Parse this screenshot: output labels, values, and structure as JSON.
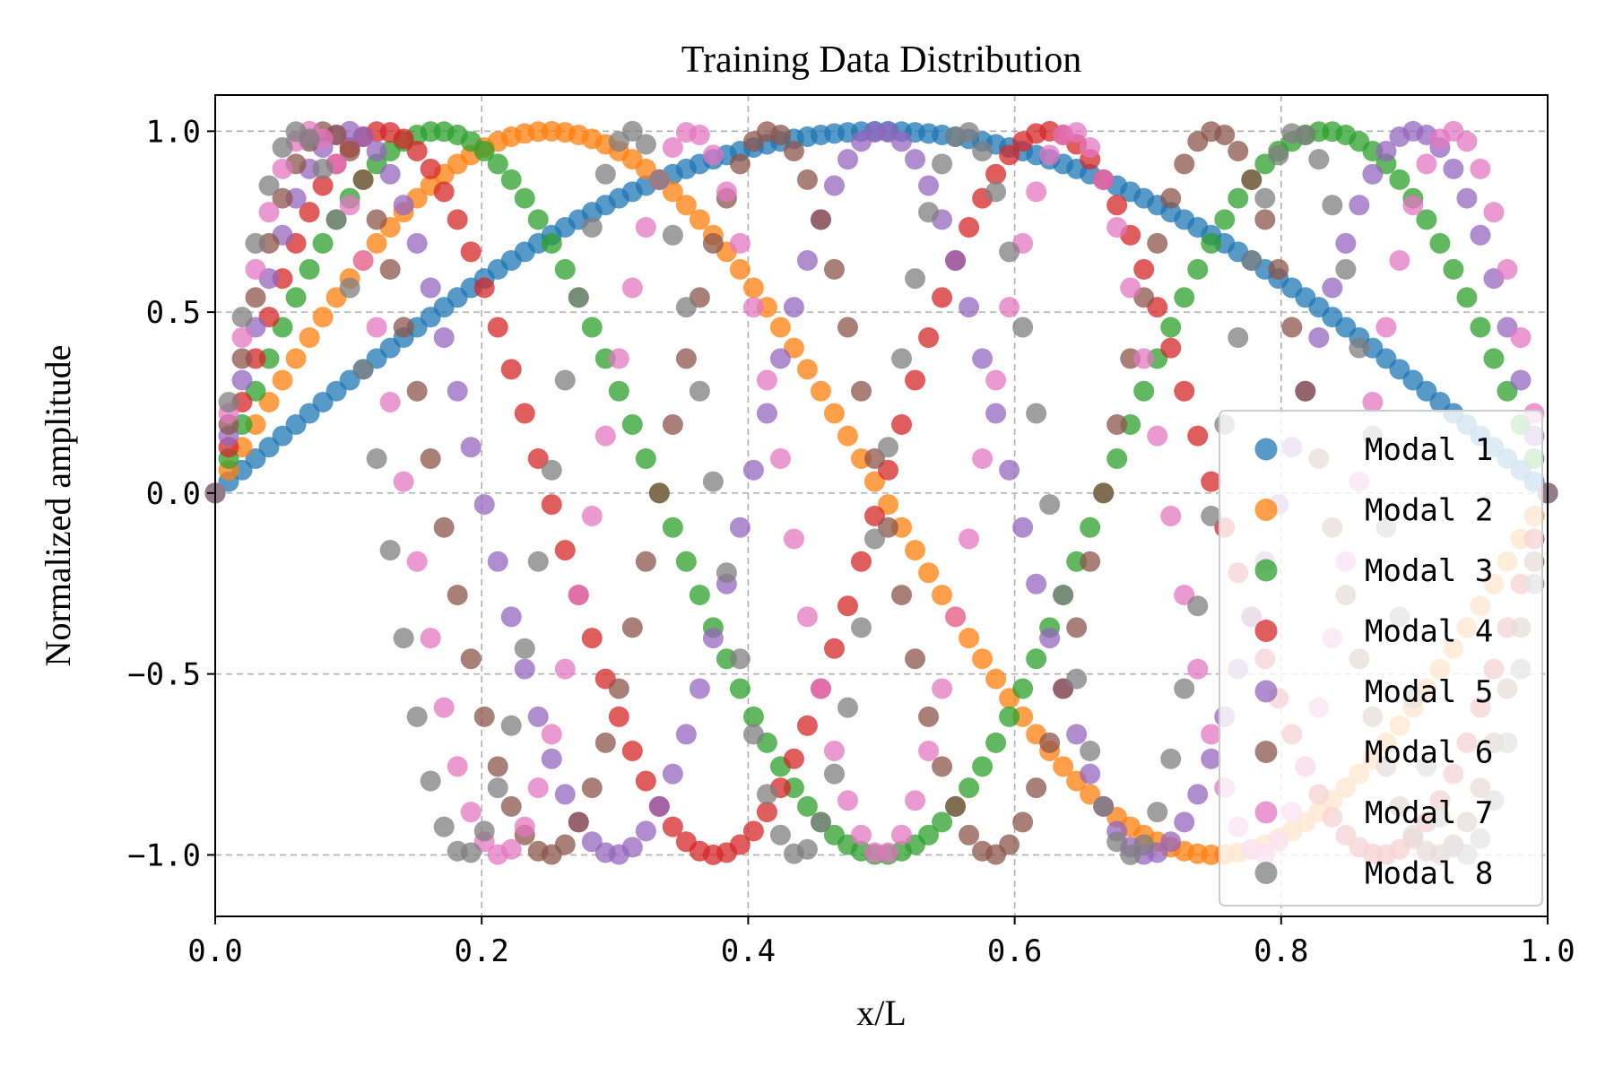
{
  "chart_data": {
    "type": "scatter",
    "title": "Training Data Distribution",
    "xlabel": "x/L",
    "ylabel": "Normalized amplitude",
    "xlim": [
      0.0,
      1.0
    ],
    "ylim": [
      -1.17,
      1.1
    ],
    "xticks": [
      "0.0",
      "0.2",
      "0.4",
      "0.6",
      "0.8",
      "1.0"
    ],
    "yticks": [
      "1.0",
      "0.5",
      "0.0",
      "−0.5",
      "−1.0"
    ],
    "grid": true,
    "legend": "lower-right",
    "point_count": 100,
    "series": [
      {
        "name": "Modal 1",
        "color": "#1f77b4",
        "curve": "sine",
        "mode": 1,
        "amplitude": 1.0
      },
      {
        "name": "Modal 2",
        "color": "#ff7f0e",
        "curve": "sine",
        "mode": 2,
        "amplitude": 1.0
      },
      {
        "name": "Modal 3",
        "color": "#2ca02c",
        "curve": "sine",
        "mode": 3,
        "amplitude": 1.0
      },
      {
        "name": "Modal 4",
        "color": "#d62728",
        "curve": "sine",
        "mode": 4,
        "amplitude": 1.0
      },
      {
        "name": "Modal 5",
        "color": "#9467bd",
        "curve": "sine",
        "mode": 5,
        "amplitude": 1.0
      },
      {
        "name": "Modal 6",
        "color": "#8c564b",
        "curve": "sine",
        "mode": 6,
        "amplitude": 1.0
      },
      {
        "name": "Modal 7",
        "color": "#e377c2",
        "curve": "sine",
        "mode": 7,
        "amplitude": 1.0
      },
      {
        "name": "Modal 8",
        "color": "#7f7f7f",
        "curve": "sine",
        "mode": 8,
        "amplitude": 1.0
      }
    ]
  }
}
